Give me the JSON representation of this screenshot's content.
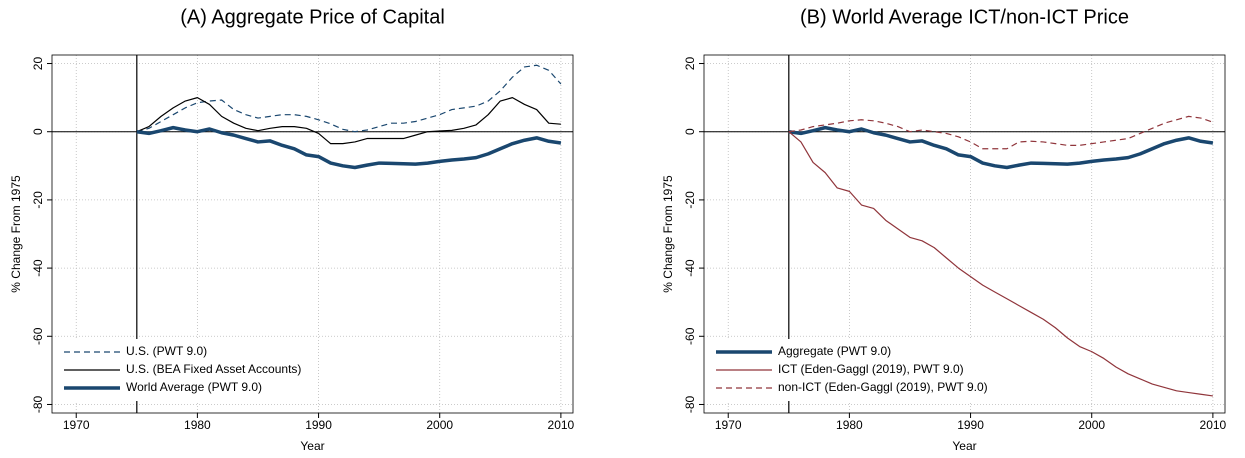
{
  "chart_data": [
    {
      "type": "line",
      "title": "(A) Aggregate Price of Capital",
      "x_label": "Year",
      "y_label": "% Change From 1975",
      "x": [
        1975,
        1976,
        1977,
        1978,
        1979,
        1980,
        1981,
        1982,
        1983,
        1984,
        1985,
        1986,
        1987,
        1988,
        1989,
        1990,
        1991,
        1992,
        1993,
        1994,
        1995,
        1996,
        1997,
        1998,
        1999,
        2000,
        2001,
        2002,
        2003,
        2004,
        2005,
        2006,
        2007,
        2008,
        2009,
        2010
      ],
      "series": [
        {
          "name": "U.S. (PWT 9.0)",
          "color": "#1a476f",
          "dash": true,
          "line_width": 1.2,
          "values": [
            0,
            1,
            3,
            5,
            7,
            8.5,
            9,
            9.3,
            6.5,
            5,
            4,
            4.5,
            5,
            5,
            4.5,
            3.5,
            2.3,
            0.7,
            0,
            0.5,
            1.5,
            2.5,
            2.5,
            3,
            4,
            5,
            6.5,
            7,
            7.5,
            9,
            12,
            16,
            19,
            19.5,
            18,
            14
          ]
        },
        {
          "name": "U.S. (BEA Fixed Asset Accounts)",
          "color": "#000000",
          "dash": false,
          "line_width": 1.2,
          "values": [
            0,
            1.5,
            4.5,
            7,
            9,
            10,
            8,
            4.5,
            2.5,
            1,
            0.3,
            1,
            1.5,
            1.5,
            1,
            -0.5,
            -3.5,
            -3.5,
            -3,
            -2,
            -2,
            -2,
            -2,
            -1,
            0,
            0.2,
            0.4,
            1,
            2,
            5,
            9,
            10,
            8,
            6.5,
            2.5,
            2.2
          ]
        },
        {
          "name": "World Average (PWT 9.0)",
          "color": "#1a476f",
          "dash": false,
          "line_width": 3.5,
          "values": [
            0,
            -0.5,
            0.3,
            1.2,
            0.5,
            0,
            0.8,
            -0.3,
            -1,
            -2,
            -3,
            -2.7,
            -4,
            -5,
            -6.8,
            -7.3,
            -9.2,
            -10,
            -10.5,
            -9.8,
            -9.2,
            -9.3,
            -9.4,
            -9.5,
            -9.2,
            -8.7,
            -8.3,
            -8,
            -7.6,
            -6.5,
            -5,
            -3.5,
            -2.5,
            -1.8,
            -2.8,
            -3.3
          ]
        }
      ],
      "xlim": [
        1968,
        2011
      ],
      "xticks": [
        1970,
        1980,
        1990,
        2000,
        2010
      ],
      "ylim": [
        22.5,
        -82.5
      ],
      "yticks": [
        20,
        0,
        -20,
        -40,
        -60,
        -80
      ],
      "xline": 1975,
      "yline": 0,
      "grid": true,
      "legend": "lower left"
    },
    {
      "type": "line",
      "title": "(B) World Average ICT/non-ICT Price",
      "x_label": "Year",
      "y_label": "% Change From 1975",
      "x": [
        1975,
        1976,
        1977,
        1978,
        1979,
        1980,
        1981,
        1982,
        1983,
        1984,
        1985,
        1986,
        1987,
        1988,
        1989,
        1990,
        1991,
        1992,
        1993,
        1994,
        1995,
        1996,
        1997,
        1998,
        1999,
        2000,
        2001,
        2002,
        2003,
        2004,
        2005,
        2006,
        2007,
        2008,
        2009,
        2010
      ],
      "series": [
        {
          "name": "Aggregate (PWT 9.0)",
          "color": "#1a476f",
          "dash": false,
          "line_width": 3.5,
          "values": [
            0,
            -0.5,
            0.3,
            1.2,
            0.5,
            0,
            0.8,
            -0.3,
            -1,
            -2,
            -3,
            -2.7,
            -4,
            -5,
            -6.8,
            -7.3,
            -9.2,
            -10,
            -10.5,
            -9.8,
            -9.2,
            -9.3,
            -9.4,
            -9.5,
            -9.2,
            -8.7,
            -8.3,
            -8,
            -7.6,
            -6.5,
            -5,
            -3.5,
            -2.5,
            -1.8,
            -2.8,
            -3.3
          ]
        },
        {
          "name": "ICT (Eden-Gaggl (2019), PWT 9.0)",
          "color": "#90353b",
          "dash": false,
          "line_width": 1.2,
          "values": [
            0,
            -3,
            -9,
            -12,
            -16.5,
            -17.5,
            -21.5,
            -22.5,
            -26,
            -28.5,
            -31,
            -32,
            -34,
            -37,
            -40,
            -42.5,
            -45,
            -47,
            -49,
            -51,
            -53,
            -55,
            -57.5,
            -60.5,
            -63,
            -64.5,
            -66.5,
            -69,
            -71,
            -72.5,
            -74,
            -75,
            -76,
            -76.5,
            -77,
            -77.5
          ]
        },
        {
          "name": "non-ICT (Eden-Gaggl (2019), PWT 9.0)",
          "color": "#90353b",
          "dash": true,
          "line_width": 1.2,
          "values": [
            0,
            0.5,
            1.5,
            2,
            2.5,
            3.2,
            3.5,
            3.2,
            2.5,
            1.5,
            0,
            0.5,
            0,
            -0.5,
            -1.5,
            -3,
            -5,
            -5,
            -5,
            -3,
            -2.8,
            -3,
            -3.5,
            -4,
            -4,
            -3.5,
            -3,
            -2.5,
            -2,
            -0.5,
            1,
            2.5,
            3.5,
            4.5,
            4,
            2.8
          ]
        }
      ],
      "xlim": [
        1968,
        2011
      ],
      "xticks": [
        1970,
        1980,
        1990,
        2000,
        2010
      ],
      "ylim": [
        22.5,
        -82.5
      ],
      "yticks": [
        20,
        0,
        -20,
        -40,
        -60,
        -80
      ],
      "xline": 1975,
      "yline": 0,
      "grid": true,
      "legend": "lower left"
    }
  ]
}
